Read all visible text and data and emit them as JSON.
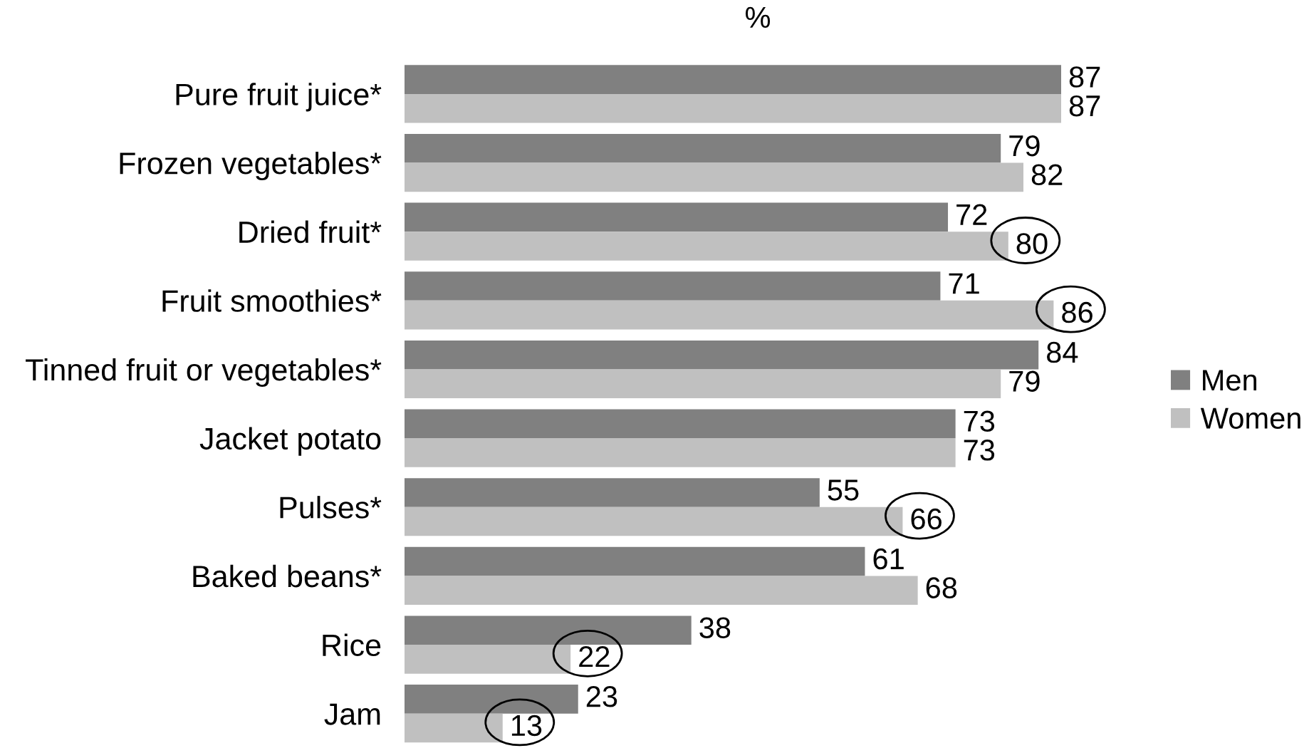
{
  "chart_data": {
    "type": "bar",
    "orientation": "horizontal",
    "xlabel": "%",
    "categories": [
      "Pure fruit juice*",
      "Frozen vegetables*",
      "Dried fruit*",
      "Fruit smoothies*",
      "Tinned fruit or vegetables*",
      "Jacket potato",
      "Pulses*",
      "Baked beans*",
      "Rice",
      "Jam"
    ],
    "series": [
      {
        "name": "Men",
        "color": "#808080",
        "values": [
          87,
          79,
          72,
          71,
          84,
          73,
          55,
          61,
          38,
          23
        ],
        "value_labels": [
          "87",
          "79",
          "72",
          "71",
          "84",
          "73",
          "55",
          "61",
          "38",
          "23"
        ]
      },
      {
        "name": "Women",
        "color": "#c0c0c0",
        "values": [
          87,
          82,
          80,
          86,
          79,
          73,
          66,
          68,
          22,
          13
        ],
        "value_labels": [
          "87",
          "82",
          null,
          null,
          "79",
          "73",
          null,
          "68",
          null,
          null
        ]
      }
    ],
    "annotations": [
      {
        "text": "80",
        "x": 80,
        "y": "Dried fruit*"
      },
      {
        "text": "86",
        "x": 86,
        "y": "Fruit smoothies*"
      },
      {
        "text": "66",
        "x": 66,
        "y": "Pulses*"
      },
      {
        "text": "22",
        "x": 22,
        "y": "Rice"
      },
      {
        "text": "13",
        "x": 13,
        "y": "Jam"
      }
    ],
    "legend": "right",
    "tick_labels": "y"
  }
}
